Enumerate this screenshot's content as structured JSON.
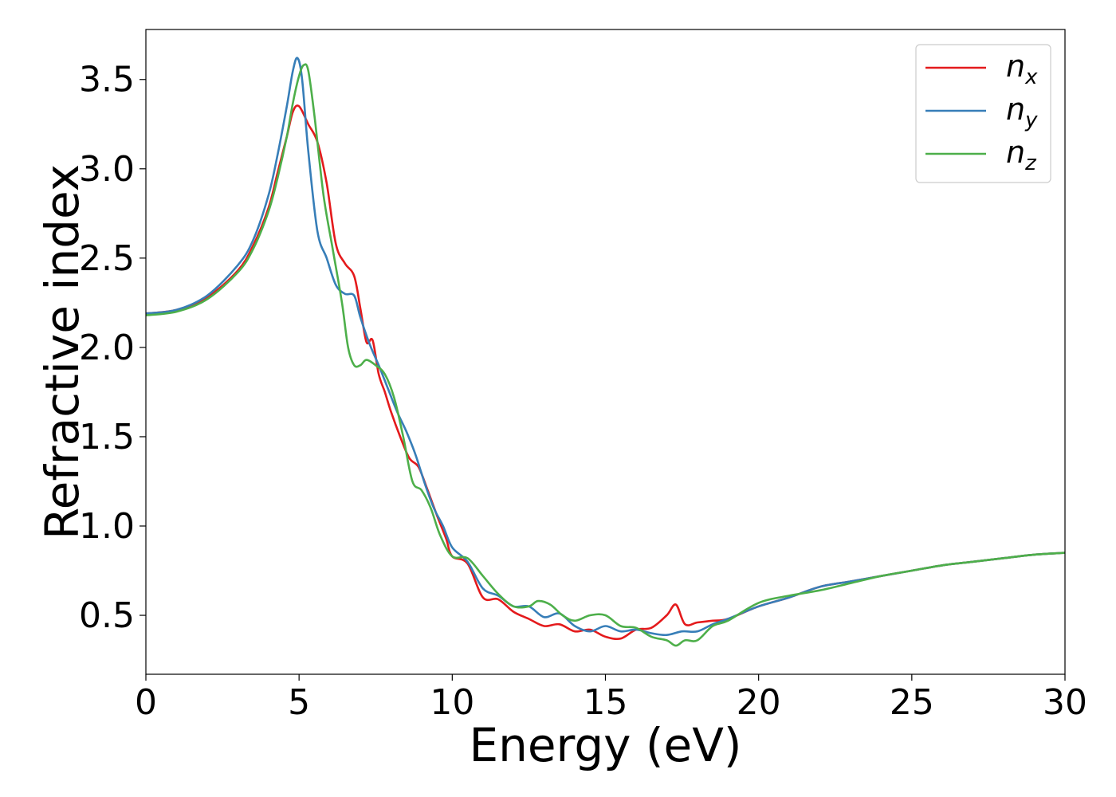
{
  "chart_data": {
    "type": "line",
    "xlabel": "Energy (eV)",
    "ylabel": "Refractive index",
    "xlim": [
      0,
      30
    ],
    "ylim": [
      0.17,
      3.78
    ],
    "xticks": [
      0,
      5,
      10,
      15,
      20,
      25,
      30
    ],
    "xtick_labels": [
      "0",
      "5",
      "10",
      "15",
      "20",
      "25",
      "30"
    ],
    "yticks": [
      0.5,
      1.0,
      1.5,
      2.0,
      2.5,
      3.0,
      3.5
    ],
    "ytick_labels": [
      "0.5",
      "1.0",
      "1.5",
      "2.0",
      "2.5",
      "3.0",
      "3.5"
    ],
    "grid": false,
    "legend_position": "top-right",
    "series": [
      {
        "name": "n_x",
        "label_base": "n",
        "label_sub": "x",
        "color": "#e41a1c",
        "x": [
          0,
          1,
          2,
          3,
          3.5,
          4,
          4.3,
          4.6,
          4.8,
          5.0,
          5.3,
          5.6,
          5.9,
          6.2,
          6.5,
          6.8,
          7.0,
          7.2,
          7.4,
          7.6,
          7.8,
          8.0,
          8.3,
          8.6,
          8.9,
          9.2,
          9.5,
          9.8,
          10.0,
          10.5,
          11.0,
          11.5,
          12.0,
          12.5,
          13.0,
          13.5,
          14.0,
          14.5,
          15.0,
          15.5,
          16.0,
          16.5,
          17.0,
          17.3,
          17.6,
          18.0,
          18.5,
          19.0,
          20.0,
          21.0,
          22.0,
          23.0,
          24.0,
          25.0,
          26.0,
          27.0,
          28.0,
          29.0,
          30.0
        ],
        "y": [
          2.19,
          2.21,
          2.28,
          2.43,
          2.57,
          2.78,
          2.98,
          3.18,
          3.32,
          3.35,
          3.25,
          3.15,
          2.92,
          2.58,
          2.47,
          2.4,
          2.22,
          2.03,
          2.04,
          1.85,
          1.75,
          1.64,
          1.5,
          1.38,
          1.33,
          1.2,
          1.06,
          0.93,
          0.83,
          0.79,
          0.6,
          0.59,
          0.52,
          0.48,
          0.44,
          0.45,
          0.41,
          0.42,
          0.38,
          0.37,
          0.42,
          0.43,
          0.5,
          0.56,
          0.45,
          0.46,
          0.47,
          0.48,
          0.55,
          0.6,
          0.66,
          0.69,
          0.72,
          0.75,
          0.78,
          0.8,
          0.82,
          0.84,
          0.85
        ]
      },
      {
        "name": "n_y",
        "label_base": "n",
        "label_sub": "y",
        "color": "#377eb8",
        "x": [
          0,
          1,
          2,
          3,
          3.5,
          4,
          4.3,
          4.6,
          4.8,
          4.95,
          5.1,
          5.3,
          5.6,
          5.9,
          6.2,
          6.5,
          6.8,
          7.0,
          7.3,
          7.6,
          7.9,
          8.2,
          8.5,
          8.8,
          9.1,
          9.4,
          9.7,
          10.0,
          10.5,
          11.0,
          11.5,
          12.0,
          12.5,
          13.0,
          13.5,
          14.0,
          14.5,
          15.0,
          15.5,
          16.0,
          16.5,
          17.0,
          17.5,
          18.0,
          18.5,
          19.0,
          20.0,
          21.0,
          22.0,
          23.0,
          24.0,
          25.0,
          26.0,
          27.0,
          28.0,
          29.0,
          30.0
        ],
        "y": [
          2.19,
          2.21,
          2.29,
          2.46,
          2.6,
          2.85,
          3.08,
          3.35,
          3.55,
          3.62,
          3.5,
          3.1,
          2.65,
          2.5,
          2.35,
          2.3,
          2.29,
          2.17,
          2.02,
          1.9,
          1.77,
          1.64,
          1.53,
          1.4,
          1.24,
          1.1,
          1.0,
          0.88,
          0.8,
          0.65,
          0.61,
          0.55,
          0.55,
          0.49,
          0.51,
          0.44,
          0.41,
          0.44,
          0.41,
          0.42,
          0.4,
          0.39,
          0.41,
          0.41,
          0.45,
          0.48,
          0.55,
          0.6,
          0.66,
          0.69,
          0.72,
          0.75,
          0.78,
          0.8,
          0.82,
          0.84,
          0.85
        ]
      },
      {
        "name": "n_z",
        "label_base": "n",
        "label_sub": "z",
        "color": "#4daf4a",
        "x": [
          0,
          1,
          2,
          3,
          3.5,
          4,
          4.3,
          4.6,
          4.8,
          5.0,
          5.15,
          5.3,
          5.5,
          5.8,
          6.1,
          6.4,
          6.6,
          6.8,
          7.0,
          7.2,
          7.5,
          7.8,
          8.1,
          8.4,
          8.7,
          9.0,
          9.3,
          9.6,
          10.0,
          10.5,
          11.0,
          11.5,
          12.0,
          12.5,
          12.8,
          13.2,
          13.6,
          14.0,
          14.5,
          15.0,
          15.5,
          16.0,
          16.5,
          17.0,
          17.3,
          17.6,
          18.0,
          18.5,
          19.0,
          20.0,
          21.0,
          22.0,
          23.0,
          24.0,
          25.0,
          26.0,
          27.0,
          28.0,
          29.0,
          30.0
        ],
        "y": [
          2.18,
          2.2,
          2.27,
          2.42,
          2.55,
          2.76,
          2.95,
          3.18,
          3.37,
          3.52,
          3.58,
          3.55,
          3.3,
          2.85,
          2.55,
          2.25,
          2.0,
          1.9,
          1.9,
          1.93,
          1.9,
          1.85,
          1.72,
          1.5,
          1.25,
          1.2,
          1.1,
          0.95,
          0.83,
          0.82,
          0.72,
          0.62,
          0.55,
          0.55,
          0.58,
          0.56,
          0.5,
          0.47,
          0.5,
          0.5,
          0.44,
          0.43,
          0.38,
          0.36,
          0.33,
          0.36,
          0.36,
          0.44,
          0.47,
          0.57,
          0.61,
          0.64,
          0.68,
          0.72,
          0.75,
          0.78,
          0.8,
          0.82,
          0.84,
          0.85
        ]
      }
    ]
  }
}
